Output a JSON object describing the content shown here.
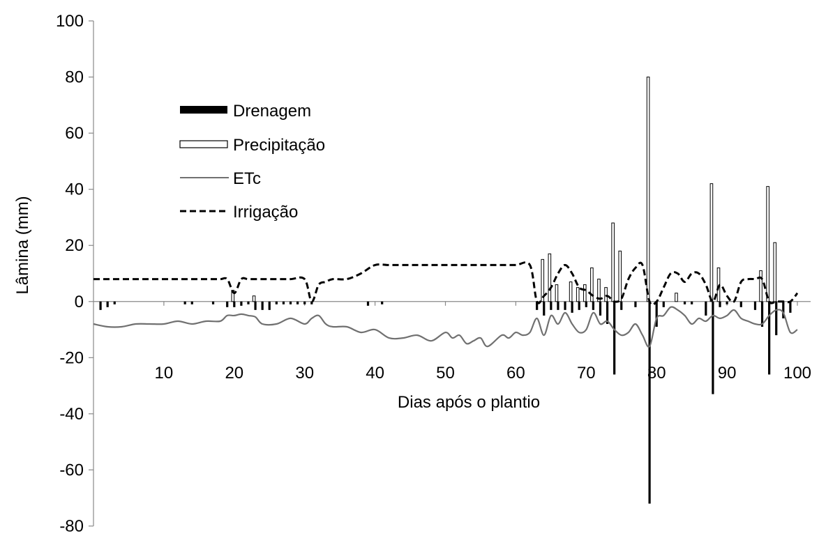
{
  "chart_data": {
    "type": "bar",
    "title": "",
    "xlabel": "Dias após o plantio",
    "ylabel": "Lâmina (mm)",
    "xlim": [
      0,
      100
    ],
    "ylim": [
      -80,
      100
    ],
    "x_ticks": [
      10,
      20,
      30,
      40,
      50,
      60,
      70,
      80,
      90,
      100
    ],
    "y_ticks": [
      -80,
      -60,
      -40,
      -20,
      0,
      20,
      40,
      60,
      80,
      100
    ],
    "grid": false,
    "legend_position": "upper-left",
    "legend": [
      {
        "label": "Drenagem",
        "style": "filled-bar"
      },
      {
        "label": "Precipitação",
        "style": "hollow-bar"
      },
      {
        "label": "ETc",
        "style": "solid-line"
      },
      {
        "label": "Irrigação",
        "style": "dashed-line"
      }
    ],
    "colors": {
      "drenagem": "#000000",
      "precipitacao": "#ffffff",
      "etc": "#707070",
      "irrigacao": "#000000"
    },
    "series": [
      {
        "name": "Drenagem",
        "type": "bar",
        "points": [
          [
            1,
            -3
          ],
          [
            2,
            -2
          ],
          [
            3,
            -1
          ],
          [
            13,
            -1
          ],
          [
            14,
            -1
          ],
          [
            17,
            -1
          ],
          [
            19,
            -2
          ],
          [
            20,
            -2
          ],
          [
            21,
            -1.5
          ],
          [
            22,
            -1
          ],
          [
            23,
            -3
          ],
          [
            24,
            -3
          ],
          [
            25,
            -3
          ],
          [
            26,
            -1
          ],
          [
            27,
            -1
          ],
          [
            28,
            -1
          ],
          [
            29,
            -1
          ],
          [
            30,
            -1
          ],
          [
            31,
            -1
          ],
          [
            39,
            -1.5
          ],
          [
            41,
            -1
          ],
          [
            63,
            -3
          ],
          [
            64,
            -5
          ],
          [
            65,
            -3
          ],
          [
            66,
            -3
          ],
          [
            67,
            -3
          ],
          [
            68,
            -4
          ],
          [
            69,
            -3
          ],
          [
            70,
            -2
          ],
          [
            71,
            -3
          ],
          [
            72,
            -5
          ],
          [
            73,
            -8
          ],
          [
            74,
            -26
          ],
          [
            75,
            -3
          ],
          [
            77,
            -2
          ],
          [
            79,
            -72
          ],
          [
            80,
            -9
          ],
          [
            81,
            -2
          ],
          [
            84,
            -1
          ],
          [
            85,
            -1
          ],
          [
            87,
            -5
          ],
          [
            88,
            -33
          ],
          [
            89,
            -2
          ],
          [
            90,
            -1
          ],
          [
            92,
            -2
          ],
          [
            94,
            -3
          ],
          [
            95,
            -9
          ],
          [
            96,
            -26
          ],
          [
            97,
            -12
          ],
          [
            98,
            -6
          ],
          [
            99,
            -4
          ]
        ]
      },
      {
        "name": "Precipitação",
        "type": "bar",
        "points": [
          [
            20,
            4
          ],
          [
            23,
            2
          ],
          [
            64,
            15
          ],
          [
            65,
            17
          ],
          [
            66,
            6
          ],
          [
            68,
            7
          ],
          [
            69,
            5
          ],
          [
            70,
            6
          ],
          [
            71,
            12
          ],
          [
            72,
            8
          ],
          [
            73,
            5
          ],
          [
            74,
            28
          ],
          [
            75,
            18
          ],
          [
            79,
            80
          ],
          [
            83,
            3
          ],
          [
            88,
            42
          ],
          [
            89,
            12
          ],
          [
            95,
            11
          ],
          [
            96,
            41
          ],
          [
            97,
            21
          ]
        ]
      },
      {
        "name": "ETc",
        "type": "line",
        "x": [
          0,
          2,
          4,
          6,
          8,
          10,
          12,
          14,
          16,
          18,
          19,
          20,
          21,
          22,
          23,
          24,
          26,
          28,
          30,
          31,
          32,
          33,
          34,
          36,
          38,
          40,
          42,
          44,
          46,
          48,
          50,
          51,
          52,
          53,
          54,
          55,
          56,
          58,
          59,
          60,
          61,
          62,
          63,
          64,
          65,
          66,
          67,
          68,
          69,
          70,
          71,
          72,
          73,
          74,
          75,
          76,
          77,
          78,
          79,
          80,
          81,
          82,
          83,
          84,
          85,
          86,
          87,
          88,
          89,
          90,
          91,
          92,
          93,
          94,
          95,
          96,
          97,
          98,
          99,
          100
        ],
        "y": [
          -8,
          -9,
          -9,
          -8,
          -8,
          -8,
          -7,
          -8,
          -7,
          -7,
          -5,
          -5,
          -4.5,
          -5,
          -5.5,
          -8,
          -8,
          -6,
          -8,
          -6,
          -5,
          -8,
          -9,
          -9,
          -11,
          -10,
          -13,
          -13,
          -12,
          -14,
          -11,
          -13,
          -12,
          -15,
          -14,
          -13,
          -16,
          -12,
          -13,
          -11,
          -12,
          -11,
          -6,
          -12,
          -5,
          -8,
          -4,
          -8,
          -11,
          -10,
          -4,
          -8,
          -7,
          -10,
          -12,
          -11,
          -8,
          -12,
          -16,
          -6,
          -5,
          -2,
          -3,
          -5,
          -8,
          -6,
          -7,
          -5,
          -6,
          -5,
          -3,
          -6,
          -7,
          -8,
          -8,
          -5,
          -3,
          -4,
          -11,
          -10
        ]
      },
      {
        "name": "Irrigação",
        "type": "line",
        "x": [
          0,
          2,
          4,
          6,
          8,
          10,
          12,
          14,
          16,
          18,
          19,
          20,
          21,
          22,
          24,
          26,
          28,
          30,
          31,
          32,
          33,
          34,
          36,
          38,
          40,
          42,
          44,
          46,
          48,
          50,
          52,
          54,
          56,
          58,
          60,
          62,
          63,
          64,
          65,
          66,
          67,
          68,
          69,
          70,
          71,
          72,
          73,
          74,
          75,
          76,
          77,
          78,
          79,
          80,
          81,
          82,
          83,
          84,
          85,
          86,
          87,
          88,
          89,
          90,
          91,
          92,
          93,
          94,
          95,
          96,
          97,
          98,
          99,
          100
        ],
        "y": [
          8,
          8,
          8,
          8,
          8,
          8,
          8,
          8,
          8,
          8,
          8,
          3,
          8,
          8,
          8,
          8,
          8,
          8,
          0,
          6,
          7,
          8,
          8,
          10,
          13,
          13,
          13,
          13,
          13,
          13,
          13,
          13,
          13,
          13,
          13,
          13,
          0,
          2,
          5,
          10,
          13,
          10,
          5,
          4,
          2,
          1,
          2,
          0,
          1,
          8,
          12,
          13,
          0,
          0,
          5,
          10,
          10,
          7,
          10,
          10,
          6,
          0,
          6,
          2,
          0,
          7,
          8,
          8,
          8,
          0,
          0,
          0,
          0,
          3
        ]
      }
    ]
  }
}
